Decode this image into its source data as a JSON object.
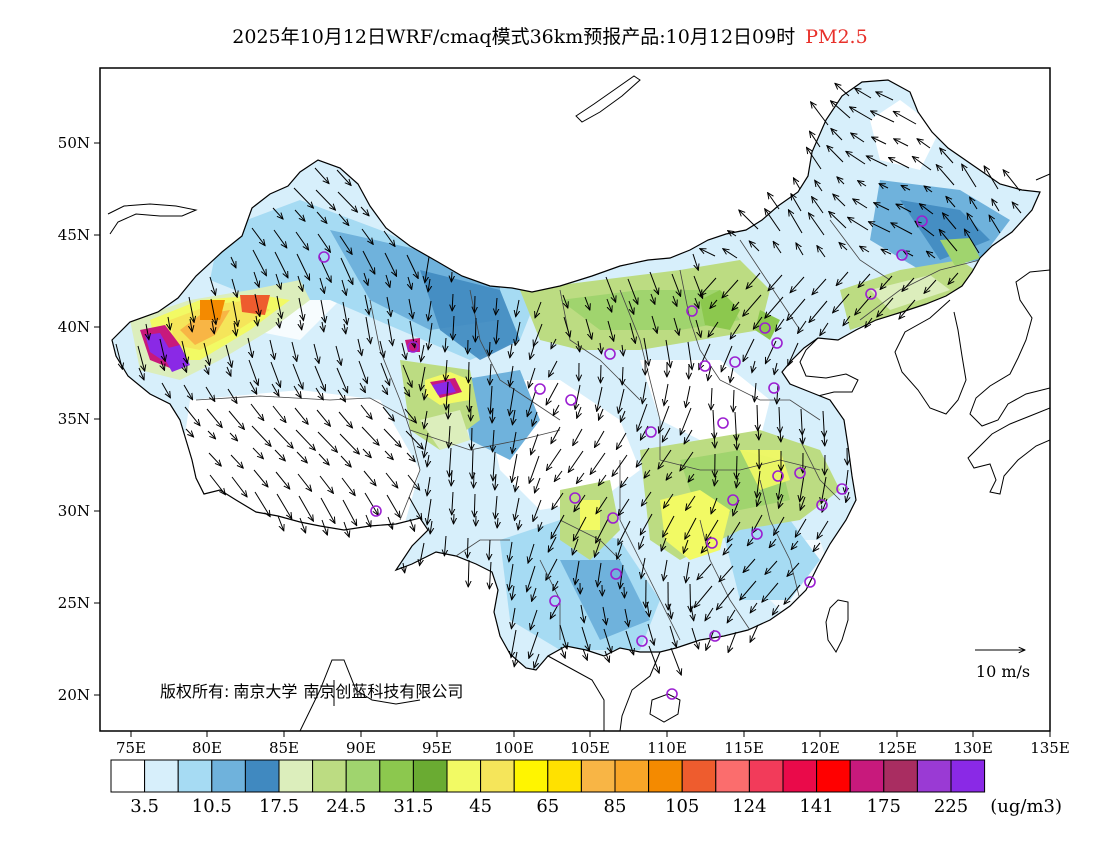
{
  "title": {
    "main": "2025年10月12日WRF/cmaq模式36km预报产品:10月12日09时",
    "pollutant": "PM2.5"
  },
  "map": {
    "lon_range": [
      73,
      135
    ],
    "lat_range": [
      18,
      54
    ],
    "lat_ticks": [
      "20N",
      "25N",
      "30N",
      "35N",
      "40N",
      "45N",
      "50N"
    ],
    "lon_ticks": [
      "75E",
      "80E",
      "85E",
      "90E",
      "95E",
      "100E",
      "105E",
      "110E",
      "115E",
      "120E",
      "125E",
      "130E",
      "135E"
    ],
    "copyright_prefix": "版权所有:",
    "copyright_org1": "南京大学",
    "copyright_org2": "南京创蓝科技有限公司",
    "wind_scale_label": "10 m/s"
  },
  "colorbar": {
    "colors": [
      "#ffffff",
      "#d7effb",
      "#a6dbf3",
      "#6fb2dc",
      "#4089c0",
      "#dceebc",
      "#bcdc82",
      "#a0d46e",
      "#8cc84e",
      "#6aab32",
      "#f2fa64",
      "#f5e55a",
      "#fff500",
      "#ffe100",
      "#f8b545",
      "#f8a628",
      "#f48a00",
      "#ee5c2e",
      "#fb6d6d",
      "#f23b5a",
      "#ea0a4a",
      "#ff0000",
      "#c8197c",
      "#a92d61",
      "#9a3ad4",
      "#8a29e6"
    ],
    "labels": [
      "3.5",
      "10.5",
      "17.5",
      "24.5",
      "31.5",
      "45",
      "65",
      "85",
      "105",
      "124",
      "141",
      "175",
      "225"
    ],
    "unit": "(ug/m3)"
  }
}
